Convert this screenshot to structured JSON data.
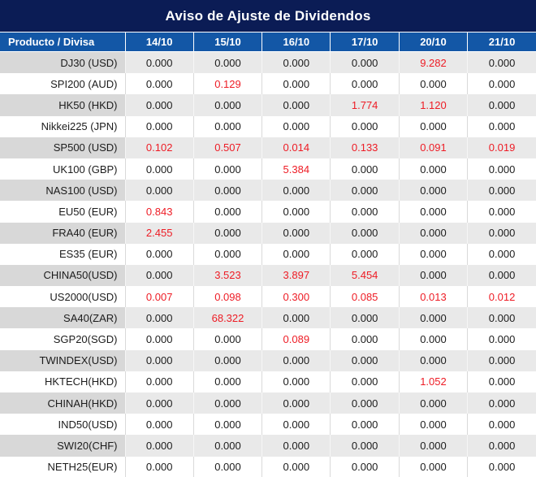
{
  "title": "Aviso de Ajuste de Dividendos",
  "colors": {
    "title_bg": "#0b1c55",
    "header_bg": "#1357a6",
    "red_value": "#ee1c25",
    "text": "#1c1c1c",
    "row_gray": "#e9e9e9",
    "label_gray": "#d8d8d8"
  },
  "table": {
    "columns": [
      "Producto / Divisa",
      "14/10",
      "15/10",
      "16/10",
      "17/10",
      "20/10",
      "21/10"
    ],
    "rows": [
      {
        "label": "DJ30 (USD)",
        "values": [
          "0.000",
          "0.000",
          "0.000",
          "0.000",
          "9.282",
          "0.000"
        ],
        "red": [
          4
        ]
      },
      {
        "label": "SPI200 (AUD)",
        "values": [
          "0.000",
          "0.129",
          "0.000",
          "0.000",
          "0.000",
          "0.000"
        ],
        "red": [
          1
        ]
      },
      {
        "label": "HK50 (HKD)",
        "values": [
          "0.000",
          "0.000",
          "0.000",
          "1.774",
          "1.120",
          "0.000"
        ],
        "red": [
          3,
          4
        ]
      },
      {
        "label": "Nikkei225 (JPN)",
        "values": [
          "0.000",
          "0.000",
          "0.000",
          "0.000",
          "0.000",
          "0.000"
        ],
        "red": []
      },
      {
        "label": "SP500 (USD)",
        "values": [
          "0.102",
          "0.507",
          "0.014",
          "0.133",
          "0.091",
          "0.019"
        ],
        "red": [
          0,
          1,
          2,
          3,
          4,
          5
        ]
      },
      {
        "label": "UK100 (GBP)",
        "values": [
          "0.000",
          "0.000",
          "5.384",
          "0.000",
          "0.000",
          "0.000"
        ],
        "red": [
          2
        ]
      },
      {
        "label": "NAS100 (USD)",
        "values": [
          "0.000",
          "0.000",
          "0.000",
          "0.000",
          "0.000",
          "0.000"
        ],
        "red": []
      },
      {
        "label": "EU50 (EUR)",
        "values": [
          "0.843",
          "0.000",
          "0.000",
          "0.000",
          "0.000",
          "0.000"
        ],
        "red": [
          0
        ]
      },
      {
        "label": "FRA40 (EUR)",
        "values": [
          "2.455",
          "0.000",
          "0.000",
          "0.000",
          "0.000",
          "0.000"
        ],
        "red": [
          0
        ]
      },
      {
        "label": "ES35 (EUR)",
        "values": [
          "0.000",
          "0.000",
          "0.000",
          "0.000",
          "0.000",
          "0.000"
        ],
        "red": []
      },
      {
        "label": "CHINA50(USD)",
        "values": [
          "0.000",
          "3.523",
          "3.897",
          "5.454",
          "0.000",
          "0.000"
        ],
        "red": [
          1,
          2,
          3
        ]
      },
      {
        "label": "US2000(USD)",
        "values": [
          "0.007",
          "0.098",
          "0.300",
          "0.085",
          "0.013",
          "0.012"
        ],
        "red": [
          0,
          1,
          2,
          3,
          4,
          5
        ]
      },
      {
        "label": "SA40(ZAR)",
        "values": [
          "0.000",
          "68.322",
          "0.000",
          "0.000",
          "0.000",
          "0.000"
        ],
        "red": [
          1
        ]
      },
      {
        "label": "SGP20(SGD)",
        "values": [
          "0.000",
          "0.000",
          "0.089",
          "0.000",
          "0.000",
          "0.000"
        ],
        "red": [
          2
        ]
      },
      {
        "label": "TWINDEX(USD)",
        "values": [
          "0.000",
          "0.000",
          "0.000",
          "0.000",
          "0.000",
          "0.000"
        ],
        "red": []
      },
      {
        "label": "HKTECH(HKD)",
        "values": [
          "0.000",
          "0.000",
          "0.000",
          "0.000",
          "1.052",
          "0.000"
        ],
        "red": [
          4
        ]
      },
      {
        "label": "CHINAH(HKD)",
        "values": [
          "0.000",
          "0.000",
          "0.000",
          "0.000",
          "0.000",
          "0.000"
        ],
        "red": []
      },
      {
        "label": "IND50(USD)",
        "values": [
          "0.000",
          "0.000",
          "0.000",
          "0.000",
          "0.000",
          "0.000"
        ],
        "red": []
      },
      {
        "label": "SWI20(CHF)",
        "values": [
          "0.000",
          "0.000",
          "0.000",
          "0.000",
          "0.000",
          "0.000"
        ],
        "red": []
      },
      {
        "label": "NETH25(EUR)",
        "values": [
          "0.000",
          "0.000",
          "0.000",
          "0.000",
          "0.000",
          "0.000"
        ],
        "red": []
      }
    ]
  }
}
